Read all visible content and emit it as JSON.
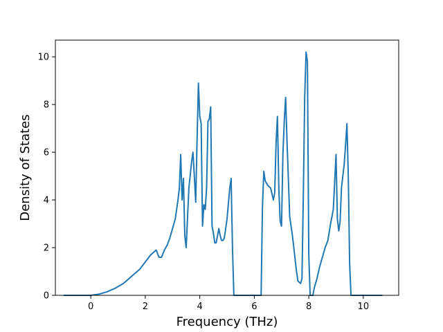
{
  "chart_data": {
    "type": "line",
    "title": "",
    "xlabel": "Frequency (THz)",
    "ylabel": "Density of States",
    "xlim": [
      -1.3,
      11.3
    ],
    "ylim": [
      0,
      10.7
    ],
    "xticks": [
      0,
      2,
      4,
      6,
      8,
      10
    ],
    "yticks": [
      0,
      2,
      4,
      6,
      8,
      10
    ],
    "grid": false,
    "legend": "none",
    "colors": {
      "line": "#1f77b4",
      "axes": "#000000",
      "background": "#ffffff"
    },
    "series": [
      {
        "x": [
          -1.0,
          -0.5,
          0.0,
          0.3,
          0.6,
          0.9,
          1.2,
          1.5,
          1.8,
          2.0,
          2.2,
          2.4,
          2.5,
          2.6,
          2.7,
          2.8,
          2.9,
          3.0,
          3.1,
          3.2,
          3.25,
          3.3,
          3.35,
          3.4,
          3.45,
          3.5,
          3.6,
          3.7,
          3.75,
          3.8,
          3.85,
          3.9,
          3.95,
          4.0,
          4.05,
          4.1,
          4.15,
          4.2,
          4.25,
          4.3,
          4.35,
          4.4,
          4.45,
          4.5,
          4.55,
          4.6,
          4.7,
          4.75,
          4.8,
          4.85,
          4.9,
          5.0,
          5.1,
          5.15,
          5.2,
          5.25,
          5.3,
          5.35,
          5.5,
          6.0,
          6.25,
          6.3,
          6.35,
          6.4,
          6.5,
          6.6,
          6.7,
          6.75,
          6.8,
          6.85,
          6.9,
          6.95,
          7.0,
          7.05,
          7.1,
          7.15,
          7.2,
          7.3,
          7.4,
          7.5,
          7.55,
          7.6,
          7.7,
          7.75,
          7.8,
          7.85,
          7.9,
          7.95,
          8.0,
          8.05,
          8.1,
          8.15,
          8.2,
          8.3,
          8.4,
          8.5,
          8.6,
          8.7,
          8.8,
          8.9,
          9.0,
          9.05,
          9.1,
          9.15,
          9.2,
          9.25,
          9.3,
          9.35,
          9.4,
          9.45,
          9.5,
          9.55,
          9.6,
          9.65,
          9.7,
          9.75,
          9.8,
          10.2,
          10.7
        ],
        "y": [
          0.0,
          0.0,
          0.0,
          0.05,
          0.15,
          0.3,
          0.5,
          0.8,
          1.1,
          1.4,
          1.7,
          1.9,
          1.6,
          1.6,
          1.9,
          2.1,
          2.4,
          2.8,
          3.2,
          4.0,
          4.5,
          5.9,
          4.0,
          4.9,
          2.5,
          2.0,
          4.5,
          5.6,
          6.0,
          5.0,
          3.9,
          6.5,
          8.9,
          7.5,
          7.2,
          2.9,
          3.8,
          3.6,
          4.5,
          7.3,
          7.4,
          7.9,
          2.9,
          2.6,
          2.2,
          2.2,
          2.8,
          2.5,
          2.3,
          2.3,
          2.4,
          3.2,
          4.5,
          4.9,
          2.0,
          0.0,
          0.0,
          0.0,
          0.0,
          0.0,
          0.0,
          3.7,
          5.2,
          4.8,
          4.6,
          4.5,
          4.0,
          4.3,
          6.4,
          7.5,
          4.5,
          3.1,
          2.9,
          5.9,
          7.3,
          8.3,
          6.5,
          3.3,
          2.5,
          1.5,
          1.0,
          0.6,
          0.5,
          0.7,
          4.2,
          8.3,
          10.2,
          9.8,
          1.7,
          0.0,
          0.0,
          0.0,
          0.3,
          0.7,
          1.2,
          1.6,
          2.0,
          2.3,
          3.0,
          3.6,
          5.9,
          3.2,
          2.7,
          3.1,
          4.5,
          5.0,
          5.5,
          6.3,
          7.2,
          5.0,
          1.3,
          0.0,
          0.0,
          0.0,
          0.0,
          0.0,
          0.0,
          0.0,
          0.0
        ]
      }
    ]
  }
}
